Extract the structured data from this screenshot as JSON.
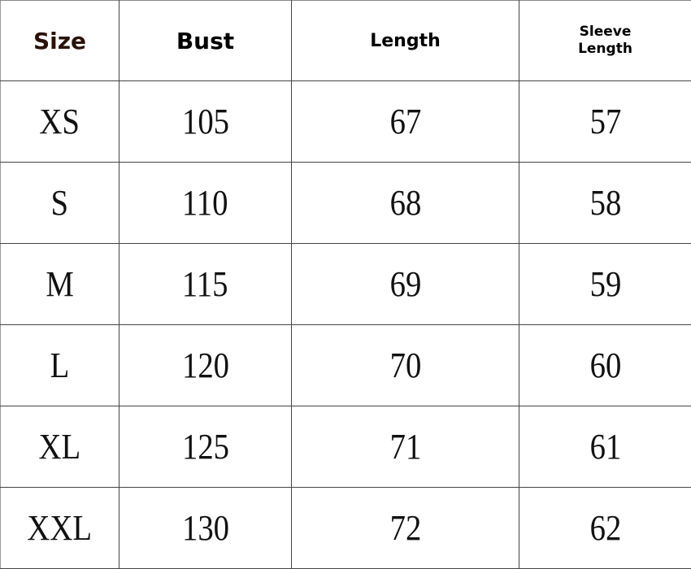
{
  "table": {
    "headers": [
      "Size",
      "Bust",
      "Length",
      "Sleeve\nLength"
    ],
    "sleeve_header_lines": [
      "Sleeve",
      "Length"
    ],
    "rows": [
      [
        "XS",
        "105",
        "67",
        "57"
      ],
      [
        "S",
        "110",
        "68",
        "58"
      ],
      [
        "M",
        "115",
        "69",
        "59"
      ],
      [
        "L",
        "120",
        "70",
        "60"
      ],
      [
        "XL",
        "125",
        "71",
        "61"
      ],
      [
        "XXL",
        "130",
        "72",
        "62"
      ]
    ]
  },
  "colors": {
    "size_header": "#2a1208",
    "grid": "#444444"
  }
}
